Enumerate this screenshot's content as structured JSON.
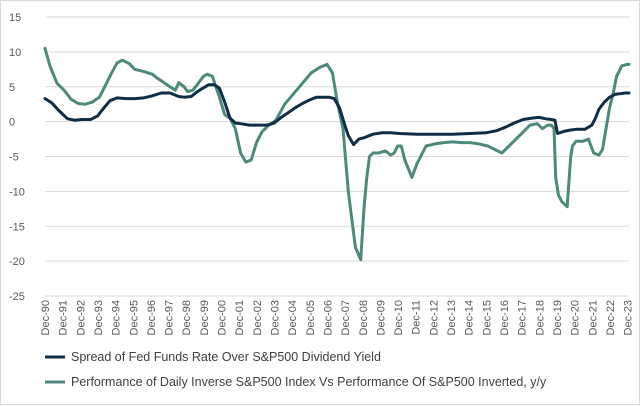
{
  "chart_data": {
    "type": "line",
    "title": "",
    "xlabel": "",
    "ylabel": "",
    "ylim": [
      -25,
      15
    ],
    "y_ticks": [
      15,
      10,
      5,
      0,
      -5,
      -10,
      -15,
      -20,
      -25
    ],
    "x_range": [
      1990.92,
      2024.0
    ],
    "x_tick_labels": [
      "Dec-90",
      "Dec-91",
      "Dec-92",
      "Dec-93",
      "Dec-94",
      "Dec-95",
      "Dec-96",
      "Dec-97",
      "Dec-98",
      "Dec-99",
      "Dec-00",
      "Dec-01",
      "Dec-02",
      "Dec-03",
      "Dec-04",
      "Dec-05",
      "Dec-06",
      "Dec-07",
      "Dec-08",
      "Dec-09",
      "Dec-10",
      "Dec-11",
      "Dec-12",
      "Dec-13",
      "Dec-14",
      "Dec-15",
      "Dec-16",
      "Dec-17",
      "Dec-18",
      "Dec-19",
      "Dec-20",
      "Dec-21",
      "Dec-22",
      "Dec-23"
    ],
    "gridlines": "horizontal",
    "legend_position": "bottom",
    "series": [
      {
        "name": "Spread of Fed Funds Rate Over S&P500 Dividend Yield",
        "color": "#0f2d44",
        "x": [
          1990.92,
          1991.3,
          1991.7,
          1992.2,
          1992.6,
          1993.0,
          1993.5,
          1993.9,
          1994.2,
          1994.6,
          1995.0,
          1995.5,
          1996.0,
          1996.5,
          1997.0,
          1997.5,
          1998.0,
          1998.5,
          1998.8,
          1999.2,
          1999.5,
          1999.8,
          2000.2,
          2000.5,
          2000.8,
          2001.1,
          2001.4,
          2001.7,
          2002.0,
          2002.5,
          2003.0,
          2003.5,
          2003.9,
          2004.3,
          2004.7,
          2005.1,
          2005.5,
          2005.9,
          2006.3,
          2006.7,
          2007.0,
          2007.3,
          2007.6,
          2007.9,
          2008.1,
          2008.4,
          2008.7,
          2009.0,
          2009.5,
          2010.0,
          2010.5,
          2011.0,
          2012.0,
          2013.0,
          2014.0,
          2015.0,
          2015.9,
          2016.5,
          2017.0,
          2017.5,
          2018.0,
          2018.5,
          2018.9,
          2019.3,
          2019.6,
          2019.8,
          2019.95,
          2020.3,
          2020.7,
          2021.0,
          2021.5,
          2021.9,
          2022.1,
          2022.3,
          2022.6,
          2022.9,
          2023.2,
          2023.5,
          2023.8,
          2024.0
        ],
        "values": [
          3.3,
          2.7,
          1.6,
          0.4,
          0.2,
          0.3,
          0.3,
          0.8,
          1.8,
          3.0,
          3.4,
          3.3,
          3.3,
          3.4,
          3.7,
          4.1,
          4.1,
          3.6,
          3.5,
          3.6,
          4.2,
          4.7,
          5.3,
          5.3,
          4.8,
          2.8,
          0.5,
          -0.2,
          -0.3,
          -0.5,
          -0.5,
          -0.5,
          -0.2,
          0.6,
          1.3,
          2.0,
          2.6,
          3.1,
          3.5,
          3.5,
          3.5,
          3.3,
          2.0,
          -0.5,
          -2.0,
          -3.3,
          -2.5,
          -2.3,
          -1.8,
          -1.6,
          -1.6,
          -1.7,
          -1.8,
          -1.8,
          -1.8,
          -1.7,
          -1.6,
          -1.3,
          -0.8,
          -0.2,
          0.3,
          0.5,
          0.6,
          0.4,
          0.3,
          0.2,
          -1.7,
          -1.4,
          -1.2,
          -1.1,
          -1.1,
          -0.5,
          0.5,
          1.8,
          2.8,
          3.5,
          3.9,
          4.0,
          4.1,
          4.1
        ]
      },
      {
        "name": "Performance of Daily Inverse S&P500 Index Vs Performance Of S&P500 Inverted, y/y",
        "color": "#4d8a7b",
        "x": [
          1990.92,
          1991.2,
          1991.6,
          1992.0,
          1992.4,
          1992.8,
          1993.2,
          1993.6,
          1994.0,
          1994.3,
          1994.7,
          1995.0,
          1995.3,
          1995.7,
          1996.0,
          1996.5,
          1997.0,
          1997.3,
          1997.6,
          1998.0,
          1998.3,
          1998.5,
          1998.8,
          1999.0,
          1999.3,
          1999.6,
          1999.9,
          2000.1,
          2000.4,
          2000.8,
          2001.1,
          2001.4,
          2001.7,
          2002.0,
          2002.3,
          2002.6,
          2002.9,
          2003.2,
          2003.6,
          2004.0,
          2004.5,
          2005.0,
          2005.5,
          2006.0,
          2006.5,
          2006.9,
          2007.2,
          2007.5,
          2007.8,
          2008.1,
          2008.5,
          2008.8,
          2009.0,
          2009.15,
          2009.3,
          2009.5,
          2009.8,
          2010.2,
          2010.5,
          2010.7,
          2010.9,
          2011.1,
          2011.3,
          2011.7,
          2012.0,
          2012.5,
          2013.0,
          2013.5,
          2014.0,
          2014.5,
          2015.0,
          2015.5,
          2016.0,
          2016.4,
          2016.8,
          2017.2,
          2017.6,
          2018.0,
          2018.4,
          2018.8,
          2019.1,
          2019.4,
          2019.6,
          2019.75,
          2019.85,
          2020.0,
          2020.2,
          2020.5,
          2020.7,
          2020.8,
          2021.0,
          2021.4,
          2021.7,
          2022.0,
          2022.3,
          2022.5,
          2022.7,
          2022.9,
          2023.1,
          2023.3,
          2023.6,
          2023.9,
          2024.0
        ],
        "values": [
          10.5,
          8.0,
          5.5,
          4.5,
          3.2,
          2.6,
          2.5,
          2.8,
          3.5,
          5.0,
          7.0,
          8.4,
          8.8,
          8.3,
          7.5,
          7.2,
          6.8,
          6.2,
          5.7,
          5.0,
          4.5,
          5.6,
          5.0,
          4.3,
          4.5,
          5.5,
          6.5,
          6.8,
          6.5,
          3.5,
          1.0,
          0.5,
          -1.0,
          -4.5,
          -5.8,
          -5.5,
          -3.0,
          -1.5,
          -0.5,
          0.2,
          2.5,
          4.0,
          5.5,
          7.0,
          7.8,
          8.2,
          7.0,
          2.5,
          -1.0,
          -10.0,
          -18.0,
          -19.8,
          -12.0,
          -8.0,
          -5.0,
          -4.5,
          -4.5,
          -4.2,
          -4.8,
          -4.5,
          -3.5,
          -3.5,
          -5.5,
          -8.0,
          -6.0,
          -3.5,
          -3.2,
          -3.0,
          -2.9,
          -3.0,
          -3.0,
          -3.2,
          -3.5,
          -4.0,
          -4.5,
          -3.5,
          -2.5,
          -1.5,
          -0.5,
          -0.3,
          -1.0,
          -0.5,
          -0.5,
          -1.0,
          -8.0,
          -10.5,
          -11.5,
          -12.2,
          -5.0,
          -3.5,
          -2.8,
          -2.8,
          -2.5,
          -4.5,
          -4.8,
          -4.0,
          -1.0,
          2.0,
          4.0,
          6.5,
          8.0,
          8.2,
          8.2
        ]
      }
    ]
  }
}
